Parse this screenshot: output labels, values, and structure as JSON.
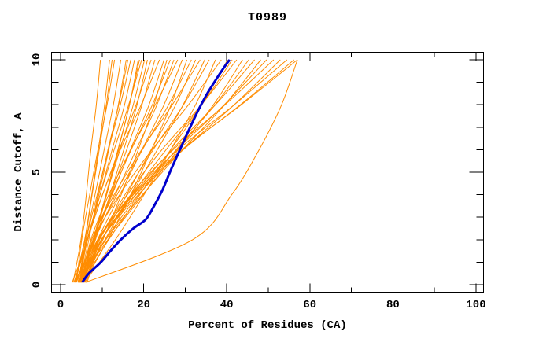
{
  "chart_data": {
    "type": "line",
    "title": "T0989",
    "xlabel": "Percent of Residues (CA)",
    "ylabel": "Distance Cutoff, A",
    "xlim": [
      0,
      100
    ],
    "ylim": [
      0,
      10
    ],
    "x_major_ticks": [
      0,
      20,
      40,
      60,
      80,
      100
    ],
    "x_minor_ticks": [
      10,
      30,
      50,
      70,
      90
    ],
    "y_major_ticks": [
      0,
      5,
      10
    ],
    "y_minor_ticks": [
      1,
      2,
      3,
      4,
      6,
      7,
      8,
      9
    ],
    "grid": false,
    "legend": "none",
    "colors": {
      "series": "#ff8c00",
      "highlight": "#0000cd",
      "axis": "#000000",
      "background": "#ffffff"
    },
    "y_samples": [
      0.1,
      2,
      4,
      6,
      8,
      10
    ],
    "series": [
      [
        3.0,
        4.9,
        6.2,
        7.3,
        8.6,
        9.6
      ],
      [
        3.4,
        5.8,
        7.5,
        9.1,
        10.6,
        11.8
      ],
      [
        3.8,
        5.1,
        7.0,
        9.0,
        11.2,
        13.0
      ],
      [
        3.6,
        5.9,
        7.6,
        9.3,
        11.0,
        12.4
      ],
      [
        4.2,
        6.1,
        8.3,
        10.5,
        12.7,
        14.5
      ],
      [
        2.8,
        6.5,
        9.2,
        11.6,
        13.9,
        15.8
      ],
      [
        4.6,
        6.8,
        9.0,
        11.4,
        14.0,
        16.2
      ],
      [
        4.5,
        6.2,
        8.8,
        11.5,
        14.4,
        16.9
      ],
      [
        3.2,
        6.5,
        9.5,
        12.4,
        15.4,
        17.8
      ],
      [
        4.8,
        8.1,
        11.1,
        13.9,
        16.6,
        18.7
      ],
      [
        5.0,
        8.0,
        10.9,
        13.8,
        16.6,
        19.0
      ],
      [
        4.2,
        6.4,
        9.5,
        12.9,
        16.4,
        19.5
      ],
      [
        5.0,
        7.8,
        11.0,
        14.3,
        17.5,
        20.2
      ],
      [
        4.4,
        8.3,
        11.9,
        15.2,
        18.4,
        20.9
      ],
      [
        3.4,
        6.5,
        10.1,
        14.1,
        18.2,
        21.8
      ],
      [
        5.2,
        8.4,
        12.1,
        15.9,
        19.6,
        22.7
      ],
      [
        4.6,
        6.5,
        10.1,
        14.4,
        19.4,
        23.8
      ],
      [
        3.6,
        8.0,
        12.4,
        16.8,
        21.3,
        24.9
      ],
      [
        5.5,
        10.2,
        14.6,
        18.7,
        22.5,
        25.6
      ],
      [
        4.8,
        7.8,
        12.2,
        17.0,
        22.1,
        26.4
      ],
      [
        3.4,
        8.2,
        13.2,
        18.2,
        23.2,
        27.3
      ],
      [
        5.0,
        7.3,
        11.6,
        16.9,
        22.8,
        28.2
      ],
      [
        4.4,
        8.9,
        14.3,
        19.6,
        24.9,
        29.3
      ],
      [
        5.6,
        11.4,
        16.9,
        21.9,
        26.6,
        30.4
      ],
      [
        3.8,
        8.0,
        13.6,
        19.7,
        26.0,
        31.5
      ],
      [
        5.0,
        10.0,
        15.9,
        21.8,
        27.7,
        32.5
      ],
      [
        4.6,
        7.5,
        12.9,
        19.5,
        26.9,
        33.6
      ],
      [
        5.4,
        10.7,
        17.0,
        23.3,
        29.5,
        34.7
      ],
      [
        4.8,
        9.2,
        15.5,
        22.3,
        29.6,
        35.8
      ],
      [
        5.8,
        13.2,
        20.1,
        26.5,
        32.5,
        37.3
      ],
      [
        4.4,
        7.8,
        14.2,
        22.0,
        30.8,
        38.7
      ],
      [
        5.2,
        11.6,
        19.1,
        26.5,
        34.0,
        40.2
      ],
      [
        4.6,
        9.8,
        17.2,
        25.4,
        34.0,
        41.3
      ],
      [
        5.6,
        9.3,
        16.1,
        24.4,
        33.9,
        42.4
      ],
      [
        4.2,
        11.4,
        19.9,
        28.3,
        36.8,
        43.8
      ],
      [
        5.0,
        10.7,
        18.9,
        27.8,
        37.2,
        45.3
      ],
      [
        5.8,
        9.9,
        17.5,
        26.8,
        37.3,
        46.7
      ],
      [
        4.8,
        10.9,
        19.7,
        29.4,
        39.5,
        48.2
      ],
      [
        5.4,
        9.8,
        18.0,
        28.0,
        39.4,
        49.6
      ],
      [
        6.2,
        9.4,
        16.9,
        27.1,
        39.6,
        51.3
      ],
      [
        5.0,
        9.8,
        18.7,
        29.5,
        41.8,
        52.9
      ],
      [
        5.6,
        9.1,
        17.2,
        28.3,
        41.8,
        54.5
      ],
      [
        6.4,
        9.9,
        18.2,
        29.5,
        43.3,
        56.2
      ],
      [
        5.2,
        8.9,
        17.5,
        29.2,
        43.5,
        57.0
      ],
      [
        6.0,
        31.8,
        41.2,
        47.8,
        53.2,
        57.0
      ]
    ],
    "highlight_series": [
      [
        5.2,
        0.1
      ],
      [
        6.8,
        0.5
      ],
      [
        9.7,
        1.0
      ],
      [
        12.0,
        1.5
      ],
      [
        14.5,
        2.0
      ],
      [
        17.5,
        2.5
      ],
      [
        20.5,
        2.9
      ],
      [
        22.5,
        3.5
      ],
      [
        24.5,
        4.2
      ],
      [
        26.3,
        5.0
      ],
      [
        28.0,
        5.7
      ],
      [
        29.7,
        6.4
      ],
      [
        31.2,
        7.0
      ],
      [
        33.0,
        7.7
      ],
      [
        35.0,
        8.4
      ],
      [
        37.0,
        9.0
      ],
      [
        39.5,
        9.7
      ],
      [
        40.7,
        10.0
      ]
    ]
  }
}
